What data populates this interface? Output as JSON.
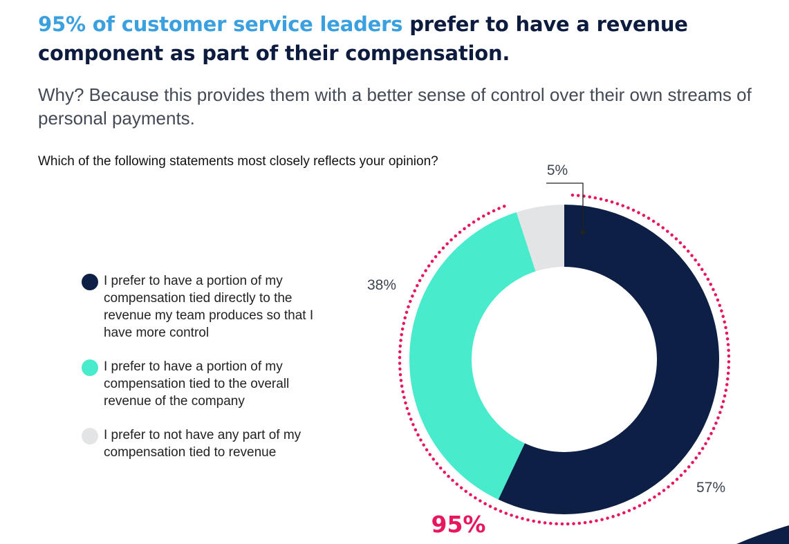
{
  "headline": {
    "accent": "95% of customer service leaders",
    "rest": " prefer to have a revenue component as part of their compensation."
  },
  "subhead": "Why? Because this provides them with a better sense of control over their own streams of personal payments.",
  "chart_data": {
    "type": "pie",
    "variant": "donut",
    "title": "Which of the following statements most closely reflects your opinion?",
    "series": [
      {
        "name": "I prefer to have a portion of my compensation tied directly to the revenue my team produces so that I have more control",
        "value": 57,
        "label": "57%",
        "color": "#0d1f45"
      },
      {
        "name": "I prefer to have a portion of my compensation tied to the overall revenue of the company",
        "value": 38,
        "label": "38%",
        "color": "#48ebcc"
      },
      {
        "name": "I prefer to not have any part of my compensation tied to revenue",
        "value": 5,
        "label": "5%",
        "color": "#e3e4e6"
      }
    ],
    "combined_label": "95%",
    "combined_label_color": "#e8175d",
    "legend_position": "left"
  }
}
